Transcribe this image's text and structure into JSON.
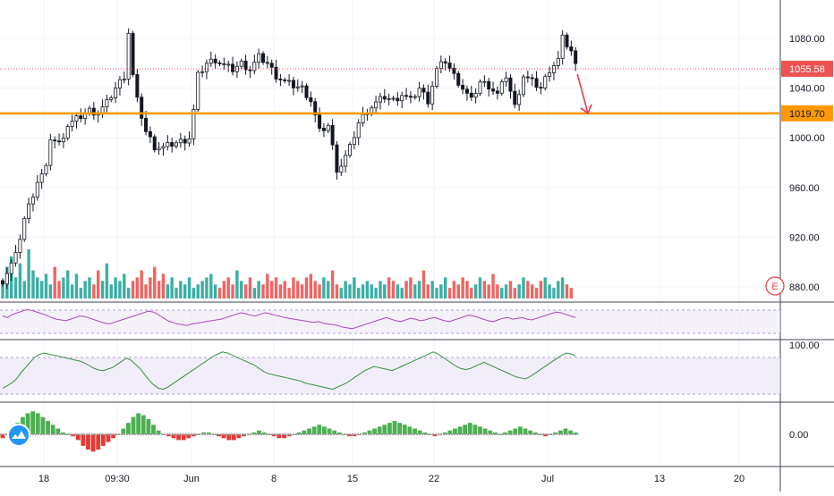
{
  "chart_data": {
    "type": "candlestick",
    "title": "",
    "xlabel": "",
    "ylabel": "",
    "price_axis": {
      "ylim": [
        860,
        1100
      ],
      "ticks": [
        "1080.00",
        "1040.00",
        "1000.00",
        "960.00",
        "920.00",
        "880.00"
      ],
      "tick_values": [
        1080,
        1040,
        1000,
        960,
        920,
        880
      ]
    },
    "time_axis": {
      "ticks": [
        "18",
        "09:30",
        "Jun",
        "8",
        "15",
        "22",
        "Jul",
        "13",
        "20"
      ]
    },
    "last_price": {
      "value": 1055.58,
      "label": "1055.58",
      "color": "#ef5350"
    },
    "support_level": {
      "value": 1019.7,
      "label": "1019.70",
      "color": "#ff9800"
    },
    "projection_arrow": {
      "from": 1055.58,
      "to": 1019.7,
      "color": "#f23645"
    },
    "earnings_marker": {
      "label": "E",
      "color": "#f23645"
    },
    "price_path": [
      [
        0,
        885
      ],
      [
        3,
        905
      ],
      [
        5,
        935
      ],
      [
        8,
        965
      ],
      [
        10,
        975
      ],
      [
        11,
        1000
      ],
      [
        13,
        995
      ],
      [
        15,
        1010
      ],
      [
        17,
        1015
      ],
      [
        20,
        1022
      ],
      [
        22,
        1020
      ],
      [
        24,
        1028
      ],
      [
        26,
        1040
      ],
      [
        28,
        1050
      ],
      [
        29,
        1085
      ],
      [
        30,
        1050
      ],
      [
        31,
        1030
      ],
      [
        33,
        1005
      ],
      [
        35,
        993
      ],
      [
        37,
        992
      ],
      [
        39,
        995
      ],
      [
        41,
        997
      ],
      [
        43,
        1000
      ],
      [
        44,
        1022
      ],
      [
        45,
        1050
      ],
      [
        47,
        1060
      ],
      [
        49,
        1063
      ],
      [
        51,
        1058
      ],
      [
        53,
        1055
      ],
      [
        55,
        1060
      ],
      [
        57,
        1055
      ],
      [
        59,
        1065
      ],
      [
        61,
        1060
      ],
      [
        63,
        1050
      ],
      [
        65,
        1045
      ],
      [
        67,
        1042
      ],
      [
        69,
        1040
      ],
      [
        71,
        1030
      ],
      [
        73,
        1005
      ],
      [
        75,
        1010
      ],
      [
        77,
        975
      ],
      [
        78,
        978
      ],
      [
        80,
        992
      ],
      [
        82,
        1012
      ],
      [
        84,
        1022
      ],
      [
        86,
        1028
      ],
      [
        88,
        1033
      ],
      [
        90,
        1030
      ],
      [
        92,
        1035
      ],
      [
        94,
        1030
      ],
      [
        96,
        1040
      ],
      [
        98,
        1030
      ],
      [
        100,
        1055
      ],
      [
        102,
        1062
      ],
      [
        104,
        1050
      ],
      [
        106,
        1040
      ],
      [
        108,
        1030
      ],
      [
        110,
        1045
      ],
      [
        112,
        1042
      ],
      [
        114,
        1035
      ],
      [
        116,
        1050
      ],
      [
        118,
        1025
      ],
      [
        120,
        1050
      ],
      [
        122,
        1045
      ],
      [
        124,
        1040
      ],
      [
        126,
        1055
      ],
      [
        128,
        1063
      ],
      [
        129,
        1080
      ],
      [
        131,
        1070
      ],
      [
        132,
        1058
      ]
    ],
    "volume": [
      4,
      9,
      12,
      6,
      10,
      5,
      14,
      8,
      6,
      5,
      7,
      4,
      9,
      5,
      6,
      8,
      4,
      7,
      3,
      5,
      6,
      4,
      8,
      5,
      10,
      4,
      6,
      5,
      7,
      3,
      5,
      6,
      8,
      4,
      6,
      9,
      5,
      7,
      4,
      6,
      3,
      5,
      4,
      6,
      3,
      4,
      5,
      6,
      7,
      4,
      3,
      5,
      6,
      4,
      8,
      5,
      4,
      6,
      3,
      5,
      4,
      7,
      5,
      6,
      4,
      5,
      3,
      6,
      5,
      4,
      6,
      7,
      5,
      4,
      6,
      5,
      8,
      4,
      3,
      5,
      4,
      6,
      3,
      4,
      5,
      4,
      3,
      5,
      4,
      6,
      5,
      4,
      3,
      5,
      6,
      4,
      5,
      8,
      4,
      5,
      3,
      4,
      6,
      3,
      5,
      4,
      6,
      5,
      3,
      4,
      6,
      5,
      4,
      7,
      4,
      3,
      4,
      5,
      3,
      4,
      6,
      5,
      4,
      3,
      5,
      6,
      4,
      3,
      5,
      6,
      4,
      3
    ],
    "indicator_1": {
      "series": [
        62,
        60,
        64,
        66,
        68,
        70,
        69,
        67,
        65,
        63,
        60,
        58,
        57,
        56,
        58,
        60,
        62,
        61,
        59,
        57,
        55,
        53,
        52,
        54,
        56,
        58,
        60,
        62,
        64,
        66,
        68,
        67,
        64,
        60,
        56,
        54,
        52,
        51,
        50,
        52,
        53,
        54,
        55,
        56,
        57,
        58,
        60,
        62,
        64,
        66,
        65,
        63,
        62,
        64,
        66,
        65,
        63,
        62,
        60,
        59,
        58,
        57,
        56,
        55,
        54,
        55,
        53,
        52,
        51,
        50,
        48,
        47,
        46,
        48,
        50,
        52,
        54,
        56,
        58,
        60,
        58,
        56,
        55,
        57,
        59,
        58,
        56,
        57,
        59,
        60,
        58,
        56,
        55,
        57,
        59,
        61,
        63,
        62,
        60,
        58,
        56,
        55,
        57,
        59,
        60,
        58,
        59,
        60,
        58,
        57,
        59,
        61,
        63,
        65,
        67,
        66,
        64,
        62,
        60
      ],
      "ylim": [
        30,
        75
      ]
    },
    "indicator_2": {
      "series": [
        20,
        25,
        30,
        38,
        50,
        60,
        70,
        80,
        85,
        88,
        86,
        84,
        82,
        80,
        78,
        76,
        74,
        72,
        68,
        63,
        58,
        55,
        54,
        57,
        60,
        66,
        72,
        78,
        74,
        66,
        58,
        46,
        35,
        26,
        20,
        18,
        22,
        28,
        34,
        40,
        46,
        52,
        58,
        64,
        70,
        76,
        82,
        86,
        90,
        88,
        84,
        80,
        76,
        72,
        68,
        64,
        58,
        52,
        48,
        46,
        44,
        42,
        40,
        38,
        36,
        34,
        30,
        28,
        26,
        24,
        22,
        20,
        18,
        22,
        26,
        30,
        36,
        42,
        48,
        54,
        58,
        62,
        60,
        58,
        56,
        54,
        58,
        62,
        66,
        70,
        74,
        78,
        82,
        86,
        90,
        86,
        80,
        74,
        68,
        62,
        58,
        56,
        58,
        62,
        66,
        70,
        66,
        62,
        58,
        54,
        50,
        46,
        42,
        40,
        38,
        42,
        48,
        54,
        60,
        66,
        72,
        78,
        84,
        88,
        86,
        82
      ],
      "ylim": [
        0,
        100
      ],
      "tick_label": "100.00",
      "band": [
        20,
        80
      ]
    },
    "indicator_3": {
      "series": [
        -2,
        0,
        3,
        6,
        9,
        11,
        12,
        11,
        9,
        7,
        5,
        3,
        1,
        0,
        -1,
        -3,
        -6,
        -8,
        -9,
        -8,
        -6,
        -4,
        -2,
        0,
        3,
        6,
        9,
        11,
        10,
        8,
        5,
        2,
        0,
        -1,
        -2,
        -3,
        -3,
        -2,
        -1,
        0,
        1,
        1,
        0,
        -1,
        -2,
        -3,
        -3,
        -2,
        -1,
        0,
        1,
        2,
        1,
        0,
        -1,
        -2,
        -2,
        -1,
        0,
        1,
        2,
        3,
        4,
        5,
        4,
        3,
        2,
        1,
        0,
        -1,
        -1,
        0,
        1,
        2,
        3,
        4,
        5,
        6,
        7,
        6,
        5,
        4,
        3,
        2,
        1,
        0,
        -1,
        0,
        1,
        2,
        3,
        4,
        5,
        6,
        5,
        4,
        3,
        2,
        1,
        0,
        1,
        2,
        3,
        4,
        3,
        2,
        1,
        0,
        -1,
        0,
        1,
        2,
        3,
        2,
        1
      ],
      "ylim": [
        -14,
        14
      ],
      "tick_label": "0.00"
    },
    "grid": true
  }
}
